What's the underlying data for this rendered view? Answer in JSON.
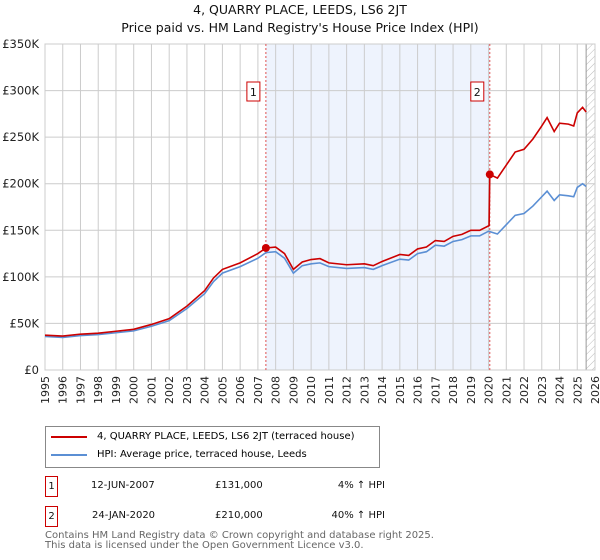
{
  "chart_data": {
    "type": "line",
    "title": "4, QUARRY PLACE, LEEDS, LS6 2JT",
    "subtitle": "Price paid vs. HM Land Registry's House Price Index (HPI)",
    "ylim": [
      0,
      350000
    ],
    "xlim": [
      1995,
      2026
    ],
    "yticks": [
      0,
      50000,
      100000,
      150000,
      200000,
      250000,
      300000,
      350000
    ],
    "ytick_labels": [
      "£0",
      "£50K",
      "£100K",
      "£150K",
      "£200K",
      "£250K",
      "£300K",
      "£350K"
    ],
    "xticks": [
      1995,
      1996,
      1997,
      1998,
      1999,
      2000,
      2001,
      2002,
      2003,
      2004,
      2005,
      2006,
      2007,
      2008,
      2009,
      2010,
      2011,
      2012,
      2013,
      2014,
      2015,
      2016,
      2017,
      2018,
      2019,
      2020,
      2021,
      2022,
      2023,
      2024,
      2025,
      2026
    ],
    "grid": true,
    "shaded_period": [
      2007.45,
      2020.07
    ],
    "forecast_hatch_from": 2025.5,
    "colors": {
      "price": "#cc0000",
      "hpi": "#5b8fd4",
      "shade": "#eef3fd"
    },
    "series": [
      {
        "name": "4, QUARRY PLACE, LEEDS, LS6 2JT (terraced house)",
        "x": [
          1995,
          1996,
          1997,
          1998,
          1999,
          2000,
          2001,
          2002,
          2003,
          2004,
          2004.5,
          2005,
          2006,
          2007,
          2007.45,
          2008,
          2008.5,
          2009,
          2009.5,
          2010,
          2010.5,
          2011,
          2012,
          2013,
          2013.5,
          2014,
          2015,
          2015.5,
          2016,
          2016.5,
          2017,
          2017.5,
          2018,
          2018.5,
          2019,
          2019.5,
          2020.03,
          2020.07,
          2020.5,
          2021,
          2021.5,
          2022,
          2022.5,
          2023,
          2023.3,
          2023.7,
          2024,
          2024.5,
          2024.8,
          2025,
          2025.3,
          2025.5
        ],
        "values": [
          37400,
          36400,
          38500,
          39500,
          41600,
          43700,
          48900,
          55100,
          68600,
          85300,
          98800,
          108000,
          115000,
          125000,
          131000,
          132000,
          125000,
          108000,
          116000,
          118600,
          119600,
          115000,
          113000,
          114000,
          112000,
          116500,
          124000,
          123000,
          130000,
          132000,
          139000,
          138000,
          143500,
          145600,
          150000,
          150000,
          155000,
          210000,
          206000,
          220000,
          234000,
          237000,
          248000,
          262000,
          271000,
          256000,
          265000,
          264000,
          262000,
          276000,
          282000,
          277000
        ]
      },
      {
        "name": "HPI: Average price, terraced house, Leeds",
        "x": [
          1995,
          1996,
          1997,
          1998,
          1999,
          2000,
          2001,
          2002,
          2003,
          2004,
          2004.5,
          2005,
          2006,
          2007,
          2007.45,
          2008,
          2008.5,
          2009,
          2009.5,
          2010,
          2010.5,
          2011,
          2012,
          2013,
          2013.5,
          2014,
          2015,
          2015.5,
          2016,
          2016.5,
          2017,
          2017.5,
          2018,
          2018.5,
          2019,
          2019.5,
          2020,
          2020.5,
          2021,
          2021.5,
          2022,
          2022.5,
          2023,
          2023.3,
          2023.7,
          2024,
          2024.5,
          2024.8,
          2025,
          2025.3,
          2025.5
        ],
        "values": [
          36000,
          35000,
          37000,
          38000,
          40000,
          42000,
          47000,
          53000,
          66000,
          82000,
          95000,
          104000,
          111000,
          120000,
          126000,
          127000,
          120000,
          104000,
          112000,
          114000,
          115000,
          111000,
          109000,
          110000,
          108000,
          112000,
          119000,
          118000,
          125000,
          127000,
          134000,
          133000,
          138000,
          140000,
          144000,
          144000,
          149000,
          146000,
          156000,
          166000,
          168000,
          176000,
          186000,
          192000,
          182000,
          188000,
          187000,
          186000,
          196000,
          200000,
          197000
        ]
      }
    ],
    "sales": [
      {
        "label": "1",
        "date": "12-JUN-2007",
        "x": 2007.45,
        "price": "£131,000",
        "value": 131000,
        "hpi": "4% ↑ HPI"
      },
      {
        "label": "2",
        "date": "24-JAN-2020",
        "x": 2020.07,
        "price": "£210,000",
        "value": 210000,
        "hpi": "40% ↑ HPI"
      }
    ]
  },
  "footer": {
    "line1": "Contains HM Land Registry data © Crown copyright and database right 2025.",
    "line2": "This data is licensed under the Open Government Licence v3.0."
  }
}
